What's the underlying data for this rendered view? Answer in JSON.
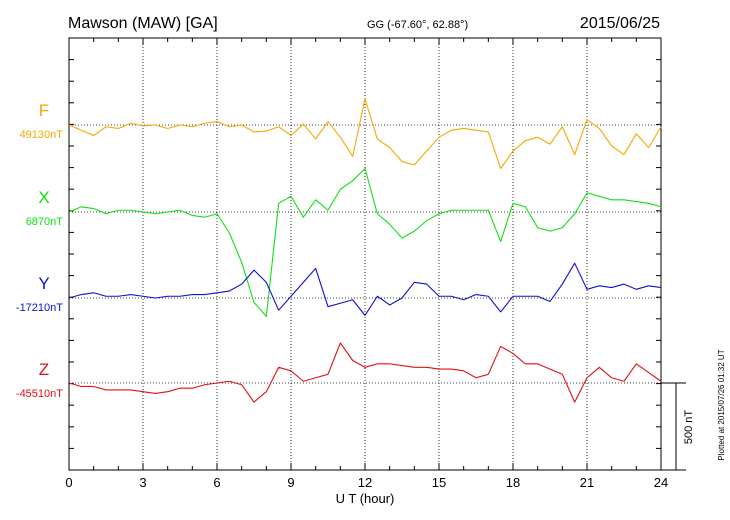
{
  "header": {
    "station": "Mawson (MAW)  [GA]",
    "coords": "GG (-67.60°,  62.88°)",
    "date": "2015/06/25"
  },
  "footer": {
    "plotted": "Plotted at 2015/07/26 01:32 UT"
  },
  "chart_data": {
    "type": "line",
    "title": "Mawson (MAW)  [GA]",
    "xlabel": "U T (hour)",
    "ylabel": "",
    "xlim": [
      0,
      24
    ],
    "x_ticks": [
      0,
      3,
      6,
      9,
      12,
      15,
      18,
      21,
      24
    ],
    "x_tick_labels": [
      "0",
      "3",
      "6",
      "9",
      "12",
      "15",
      "18",
      "21",
      "24"
    ],
    "grid": true,
    "scale_bar": {
      "label": "500 nT",
      "value_nT": 500
    },
    "x": [
      0,
      0.5,
      1,
      1.5,
      2,
      2.5,
      3,
      3.5,
      4,
      4.5,
      5,
      5.5,
      6,
      6.5,
      7,
      7.5,
      8,
      8.5,
      9,
      9.5,
      10,
      10.5,
      11,
      11.5,
      12,
      12.5,
      13,
      13.5,
      14,
      14.5,
      15,
      15.5,
      16,
      16.5,
      17,
      17.5,
      18,
      18.5,
      19,
      19.5,
      20,
      20.5,
      21,
      21.5,
      22,
      22.5,
      23,
      23.5,
      24
    ],
    "series": [
      {
        "name": "F",
        "baseline_label": "49130nT",
        "color": "#f5a800",
        "values": [
          49130,
          49100,
          49070,
          49120,
          49110,
          49140,
          49125,
          49130,
          49110,
          49130,
          49120,
          49140,
          49150,
          49120,
          49130,
          49090,
          49095,
          49120,
          49070,
          49135,
          49050,
          49150,
          49060,
          48950,
          49280,
          49050,
          49000,
          48920,
          48900,
          48980,
          49060,
          49100,
          49110,
          49100,
          49090,
          48880,
          48980,
          49040,
          49060,
          49020,
          49120,
          48960,
          49160,
          49110,
          49010,
          48960,
          49080,
          49000,
          49120
        ]
      },
      {
        "name": "X",
        "baseline_label": "6870nT",
        "color": "#10e010",
        "values": [
          6870,
          6900,
          6890,
          6860,
          6880,
          6880,
          6870,
          6860,
          6870,
          6880,
          6850,
          6840,
          6860,
          6750,
          6580,
          6350,
          6270,
          6920,
          6960,
          6840,
          6940,
          6880,
          7000,
          7050,
          7120,
          6860,
          6800,
          6720,
          6760,
          6820,
          6860,
          6880,
          6880,
          6880,
          6880,
          6700,
          6920,
          6900,
          6780,
          6760,
          6780,
          6860,
          6980,
          6960,
          6940,
          6940,
          6930,
          6920,
          6900
        ]
      },
      {
        "name": "Y",
        "baseline_label": "-17210nT",
        "color": "#1010d0",
        "values": [
          -17210,
          -17190,
          -17180,
          -17200,
          -17200,
          -17190,
          -17200,
          -17210,
          -17200,
          -17200,
          -17190,
          -17190,
          -17180,
          -17170,
          -17130,
          -17050,
          -17120,
          -17280,
          -17200,
          -17120,
          -17040,
          -17260,
          -17240,
          -17220,
          -17310,
          -17200,
          -17250,
          -17210,
          -17120,
          -17130,
          -17200,
          -17200,
          -17220,
          -17190,
          -17200,
          -17290,
          -17200,
          -17200,
          -17200,
          -17230,
          -17130,
          -17010,
          -17160,
          -17140,
          -17150,
          -17130,
          -17160,
          -17140,
          -17150
        ]
      },
      {
        "name": "Z",
        "baseline_label": "-45510nT",
        "color": "#e01010",
        "values": [
          -45510,
          -45530,
          -45530,
          -45550,
          -45550,
          -45550,
          -45560,
          -45570,
          -45560,
          -45540,
          -45540,
          -45520,
          -45510,
          -45500,
          -45520,
          -45620,
          -45560,
          -45420,
          -45440,
          -45500,
          -45480,
          -45460,
          -45280,
          -45380,
          -45420,
          -45400,
          -45400,
          -45410,
          -45420,
          -45420,
          -45430,
          -45430,
          -45440,
          -45480,
          -45460,
          -45300,
          -45340,
          -45400,
          -45400,
          -45430,
          -45460,
          -45620,
          -45480,
          -45420,
          -45480,
          -45500,
          -45400,
          -45450,
          -45500
        ]
      }
    ]
  }
}
